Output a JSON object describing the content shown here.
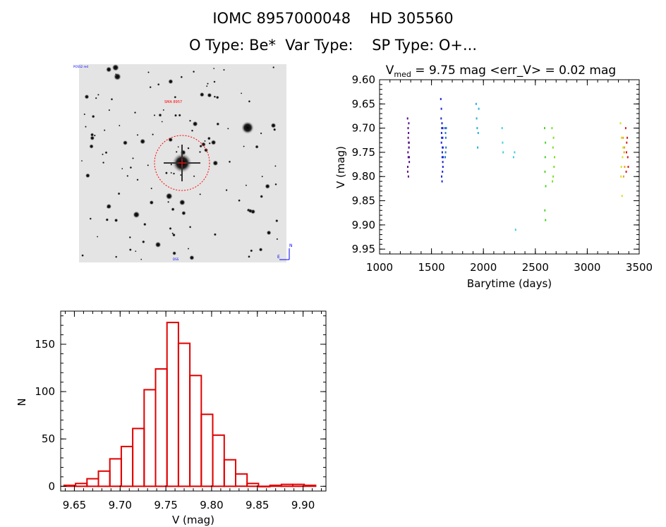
{
  "header": {
    "line1": "IOMC 8957000048    HD 305560",
    "line2": "O Type: Be*  Var Type:    SP Type: O+..."
  },
  "colors": {
    "histogram": "#e00000",
    "axes": "#000000",
    "marker": "#ff0000"
  },
  "image_panel": {
    "marker_label": "SMA 8957",
    "corner_labels": [
      "POSS2 red",
      "DSS",
      "N",
      "E"
    ]
  },
  "chart_data": [
    {
      "type": "scatter",
      "title_prefix": "V",
      "title_sub": "med",
      "title_rest": " = 9.75 mag <err_V> = 0.02 mag",
      "xlabel": "Barytime (days)",
      "ylabel": "V (mag)",
      "xlim": [
        1000,
        3500
      ],
      "ylim": [
        9.6,
        9.96
      ],
      "y_inverted": true,
      "xticks": [
        1000,
        1500,
        2000,
        2500,
        3000,
        3500
      ],
      "yticks": [
        "9.60",
        "9.65",
        "9.70",
        "9.75",
        "9.80",
        "9.85",
        "9.90",
        "9.95"
      ],
      "series": [
        {
          "color": "#5a0f8a",
          "x": [
            1270,
            1275,
            1280,
            1285,
            1272,
            1278,
            1283,
            1276,
            1281,
            1274,
            1286,
            1279,
            1271,
            1284,
            1277,
            1282
          ],
          "y": [
            9.68,
            9.7,
            9.73,
            9.76,
            9.78,
            9.8,
            9.74,
            9.72,
            9.69,
            9.75,
            9.77,
            9.71,
            9.79,
            9.73,
            9.76,
            9.74
          ]
        },
        {
          "color": "#1a28d8",
          "x": [
            1590,
            1595,
            1600,
            1605,
            1610,
            1598,
            1602,
            1607,
            1593,
            1612,
            1596,
            1604,
            1609,
            1601,
            1597,
            1606,
            1611,
            1599,
            1603,
            1608
          ],
          "y": [
            9.64,
            9.66,
            9.7,
            9.74,
            9.78,
            9.8,
            9.81,
            9.72,
            9.68,
            9.76,
            9.73,
            9.75,
            9.77,
            9.69,
            9.71,
            9.79,
            9.74,
            9.72,
            9.76,
            9.7
          ]
        },
        {
          "color": "#2a78c8",
          "x": [
            1630,
            1635,
            1640,
            1632,
            1638,
            1636,
            1642
          ],
          "y": [
            9.7,
            9.71,
            9.74,
            9.76,
            9.72,
            9.75,
            9.7
          ]
        },
        {
          "color": "#28b0d8",
          "x": [
            1930,
            1940,
            1950,
            1945,
            1935,
            1955
          ],
          "y": [
            9.65,
            9.7,
            9.71,
            9.74,
            9.68,
            9.66
          ]
        },
        {
          "color": "#40d0e0",
          "x": [
            2180,
            2185,
            2190,
            2290,
            2300,
            2310
          ],
          "y": [
            9.7,
            9.73,
            9.75,
            9.76,
            9.75,
            9.91
          ]
        },
        {
          "color": "#50d030",
          "x": [
            2590,
            2595,
            2600,
            2592,
            2598,
            2593,
            2597
          ],
          "y": [
            9.7,
            9.76,
            9.82,
            9.87,
            9.89,
            9.79,
            9.73
          ]
        },
        {
          "color": "#7ae020",
          "x": [
            2660,
            2670,
            2680,
            2665,
            2675,
            2685,
            2672
          ],
          "y": [
            9.7,
            9.74,
            9.78,
            9.81,
            9.72,
            9.76,
            9.8
          ]
        },
        {
          "color": "#d8e020",
          "x": [
            3320,
            3330,
            3340,
            3325,
            3335,
            3345,
            3328
          ],
          "y": [
            9.69,
            9.72,
            9.76,
            9.8,
            9.84,
            9.74,
            9.78
          ]
        },
        {
          "color": "#f0a020",
          "x": [
            3345,
            3355,
            3360,
            3350,
            3358
          ],
          "y": [
            9.72,
            9.75,
            9.78,
            9.8,
            9.74
          ]
        },
        {
          "color": "#d02020",
          "x": [
            3370,
            3380,
            3390,
            3375,
            3385,
            3395,
            3378
          ],
          "y": [
            9.7,
            9.73,
            9.76,
            9.79,
            9.72,
            9.78,
            9.75
          ]
        }
      ]
    },
    {
      "type": "bar",
      "xlabel": "V (mag)",
      "ylabel": "N",
      "xlim": [
        9.635,
        9.925
      ],
      "ylim": [
        -5,
        185
      ],
      "xticks": [
        "9.65",
        "9.70",
        "9.75",
        "9.80",
        "9.85",
        "9.90"
      ],
      "yticks": [
        "0",
        "50",
        "100",
        "150"
      ],
      "bin_width": 0.0125,
      "bin_centers": [
        9.645,
        9.6575,
        9.67,
        9.6825,
        9.695,
        9.7075,
        9.72,
        9.7325,
        9.745,
        9.7575,
        9.77,
        9.7825,
        9.795,
        9.8075,
        9.82,
        9.8325,
        9.845,
        9.8575,
        9.87,
        9.8825,
        9.895,
        9.9075
      ],
      "values": [
        1,
        3,
        8,
        16,
        29,
        42,
        61,
        102,
        124,
        173,
        151,
        117,
        76,
        54,
        28,
        13,
        3,
        0,
        1,
        2,
        2,
        1
      ]
    }
  ]
}
